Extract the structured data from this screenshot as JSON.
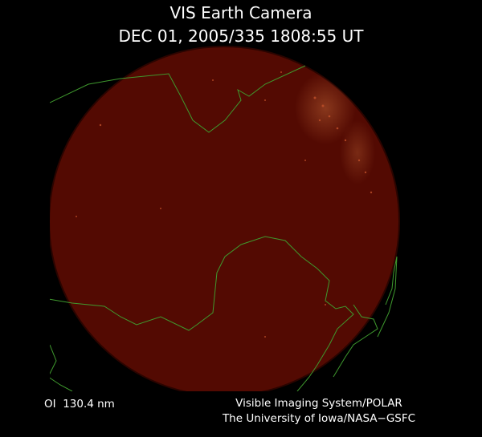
{
  "header": {
    "title": "VIS Earth Camera",
    "timestamp": "DEC 01, 2005/335 1808:55 UT"
  },
  "footer": {
    "filter": "OI  130.4 nm",
    "instrument": "Visible Imaging System/POLAR",
    "credit": "The University of Iowa/NASA−GSFC"
  }
}
